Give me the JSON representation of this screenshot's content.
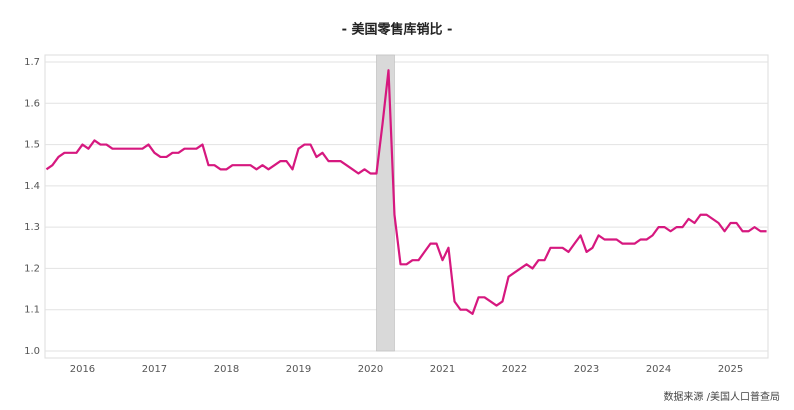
{
  "chart_data": {
    "type": "line",
    "title": "- 美国零售库销比 -",
    "source": "数据来源 /美国人口普查局",
    "x": [
      2015.5,
      2015.583,
      2015.667,
      2015.75,
      2015.833,
      2015.917,
      2016,
      2016.083,
      2016.167,
      2016.25,
      2016.333,
      2016.417,
      2016.5,
      2016.583,
      2016.667,
      2016.75,
      2016.833,
      2016.917,
      2017,
      2017.083,
      2017.167,
      2017.25,
      2017.333,
      2017.417,
      2017.5,
      2017.583,
      2017.667,
      2017.75,
      2017.833,
      2017.917,
      2018,
      2018.083,
      2018.167,
      2018.25,
      2018.333,
      2018.417,
      2018.5,
      2018.583,
      2018.667,
      2018.75,
      2018.833,
      2018.917,
      2019,
      2019.083,
      2019.167,
      2019.25,
      2019.333,
      2019.417,
      2019.5,
      2019.583,
      2019.667,
      2019.75,
      2019.833,
      2019.917,
      2020,
      2020.083,
      2020.167,
      2020.25,
      2020.333,
      2020.417,
      2020.5,
      2020.583,
      2020.667,
      2020.75,
      2020.833,
      2020.917,
      2021,
      2021.083,
      2021.167,
      2021.25,
      2021.333,
      2021.417,
      2021.5,
      2021.583,
      2021.667,
      2021.75,
      2021.833,
      2021.917,
      2022,
      2022.083,
      2022.167,
      2022.25,
      2022.333,
      2022.417,
      2022.5,
      2022.583,
      2022.667,
      2022.75,
      2022.833,
      2022.917,
      2023,
      2023.083,
      2023.167,
      2023.25,
      2023.333,
      2023.417,
      2023.5,
      2023.583,
      2023.667,
      2023.75,
      2023.833,
      2023.917,
      2024,
      2024.083,
      2024.167,
      2024.25,
      2024.333,
      2024.417,
      2024.5,
      2024.583,
      2024.667,
      2024.75,
      2024.833,
      2024.917,
      2025,
      2025.083,
      2025.167,
      2025.25,
      2025.333,
      2025.417,
      2025.5
    ],
    "series": [
      {
        "color": "#d6187f",
        "values": [
          1.44,
          1.45,
          1.47,
          1.48,
          1.48,
          1.48,
          1.5,
          1.49,
          1.51,
          1.5,
          1.5,
          1.49,
          1.49,
          1.49,
          1.49,
          1.49,
          1.49,
          1.5,
          1.48,
          1.47,
          1.47,
          1.48,
          1.48,
          1.49,
          1.49,
          1.49,
          1.5,
          1.45,
          1.45,
          1.44,
          1.44,
          1.45,
          1.45,
          1.45,
          1.45,
          1.44,
          1.45,
          1.44,
          1.45,
          1.46,
          1.46,
          1.44,
          1.49,
          1.5,
          1.5,
          1.47,
          1.48,
          1.46,
          1.46,
          1.46,
          1.45,
          1.44,
          1.43,
          1.44,
          1.43,
          1.43,
          1.55,
          1.68,
          1.33,
          1.21,
          1.21,
          1.22,
          1.22,
          1.24,
          1.26,
          1.26,
          1.22,
          1.25,
          1.12,
          1.1,
          1.1,
          1.09,
          1.13,
          1.13,
          1.12,
          1.11,
          1.12,
          1.18,
          1.19,
          1.2,
          1.21,
          1.2,
          1.22,
          1.22,
          1.25,
          1.25,
          1.25,
          1.24,
          1.26,
          1.28,
          1.24,
          1.25,
          1.28,
          1.27,
          1.27,
          1.27,
          1.26,
          1.26,
          1.26,
          1.27,
          1.27,
          1.28,
          1.3,
          1.3,
          1.29,
          1.3,
          1.3,
          1.32,
          1.31,
          1.33,
          1.33,
          1.32,
          1.31,
          1.29,
          1.31,
          1.31,
          1.29,
          1.29,
          1.3,
          1.29,
          1.29
        ]
      }
    ],
    "recession_band": [
      2020.083,
      2020.333
    ],
    "xlim": [
      2015.48,
      2025.52
    ],
    "xticks": [
      2016,
      2017,
      2018,
      2019,
      2020,
      2021,
      2022,
      2023,
      2024,
      2025
    ],
    "ylim": [
      1,
      1.7
    ],
    "yticks": [
      {
        "value": 1,
        "label": "1.0"
      },
      1.1,
      1.2,
      1.3,
      1.4,
      1.5,
      1.6,
      1.7
    ],
    "grid": true
  }
}
